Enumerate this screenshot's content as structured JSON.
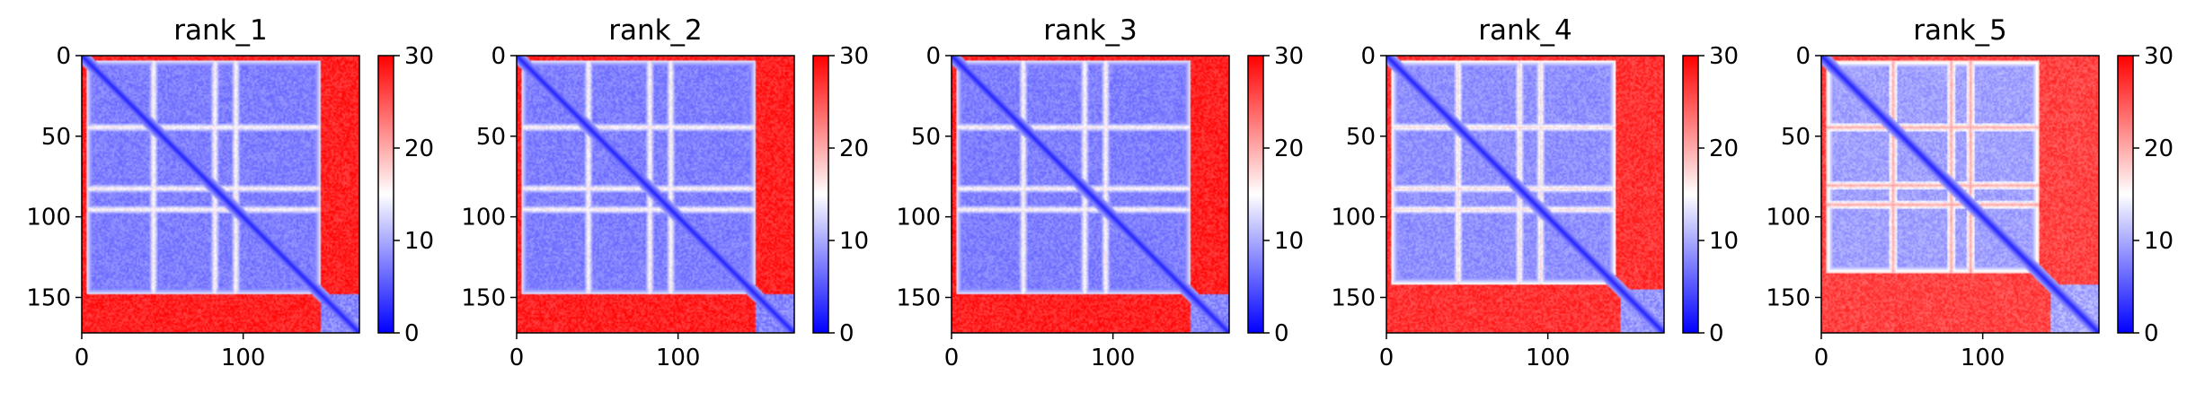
{
  "figure": {
    "colors": {
      "low": "#0000ff",
      "mid": "#ffffff",
      "high": "#ff0000",
      "frame": "#000000"
    }
  },
  "chart_data": [
    {
      "type": "heatmap",
      "title": "rank_1",
      "size": 172,
      "xlim": [
        0,
        172
      ],
      "ylim": [
        172,
        0
      ],
      "xticks": [
        0,
        100
      ],
      "yticks": [
        0,
        50,
        100,
        150
      ],
      "colorbar": {
        "range": [
          0,
          30
        ],
        "ticks": [
          0,
          10,
          20,
          30
        ],
        "colormap": "bwr"
      },
      "structure": {
        "domain_end": 148,
        "n_loop_rows": [
          44,
          82,
          95
        ],
        "c_tail_start": 148,
        "values": {
          "diagonal": 2,
          "domain_core": 6,
          "loop_row": 15,
          "tail_contact": 30,
          "domain_edge": 13
        }
      }
    },
    {
      "type": "heatmap",
      "title": "rank_2",
      "size": 172,
      "xlim": [
        0,
        172
      ],
      "ylim": [
        172,
        0
      ],
      "xticks": [
        0,
        100
      ],
      "yticks": [
        0,
        50,
        100,
        150
      ],
      "colorbar": {
        "range": [
          0,
          30
        ],
        "ticks": [
          0,
          10,
          20,
          30
        ],
        "colormap": "bwr"
      },
      "structure": {
        "domain_end": 148,
        "n_loop_rows": [
          44,
          82,
          95
        ],
        "c_tail_start": 148,
        "values": {
          "diagonal": 2,
          "domain_core": 6,
          "loop_row": 15,
          "tail_contact": 30,
          "domain_edge": 13
        }
      }
    },
    {
      "type": "heatmap",
      "title": "rank_3",
      "size": 172,
      "xlim": [
        0,
        172
      ],
      "ylim": [
        172,
        0
      ],
      "xticks": [
        0,
        100
      ],
      "yticks": [
        0,
        50,
        100,
        150
      ],
      "colorbar": {
        "range": [
          0,
          30
        ],
        "ticks": [
          0,
          10,
          20,
          30
        ],
        "colormap": "bwr"
      },
      "structure": {
        "domain_end": 148,
        "n_loop_rows": [
          44,
          82,
          95
        ],
        "c_tail_start": 148,
        "values": {
          "diagonal": 2,
          "domain_core": 6,
          "loop_row": 15,
          "tail_contact": 30,
          "domain_edge": 13
        }
      }
    },
    {
      "type": "heatmap",
      "title": "rank_4",
      "size": 172,
      "xlim": [
        0,
        172
      ],
      "ylim": [
        172,
        0
      ],
      "xticks": [
        0,
        100
      ],
      "yticks": [
        0,
        50,
        100,
        150
      ],
      "colorbar": {
        "range": [
          0,
          30
        ],
        "ticks": [
          0,
          10,
          20,
          30
        ],
        "colormap": "bwr"
      },
      "structure": {
        "domain_end": 142,
        "n_loop_rows": [
          44,
          82,
          95
        ],
        "c_tail_start": 145,
        "values": {
          "diagonal": 2,
          "domain_core": 7,
          "loop_row": 16,
          "tail_contact": 29,
          "domain_edge": 15
        }
      }
    },
    {
      "type": "heatmap",
      "title": "rank_5",
      "size": 172,
      "xlim": [
        0,
        172
      ],
      "ylim": [
        172,
        0
      ],
      "xticks": [
        0,
        100
      ],
      "yticks": [
        0,
        50,
        100,
        150
      ],
      "colorbar": {
        "range": [
          0,
          30
        ],
        "ticks": [
          0,
          10,
          20,
          30
        ],
        "colormap": "bwr"
      },
      "structure": {
        "domain_end": 135,
        "n_loop_rows": [
          44,
          80,
          92
        ],
        "c_tail_start": 142,
        "values": {
          "diagonal": 2,
          "domain_core": 8,
          "loop_row": 19,
          "tail_contact": 28,
          "domain_edge": 17
        }
      }
    }
  ]
}
